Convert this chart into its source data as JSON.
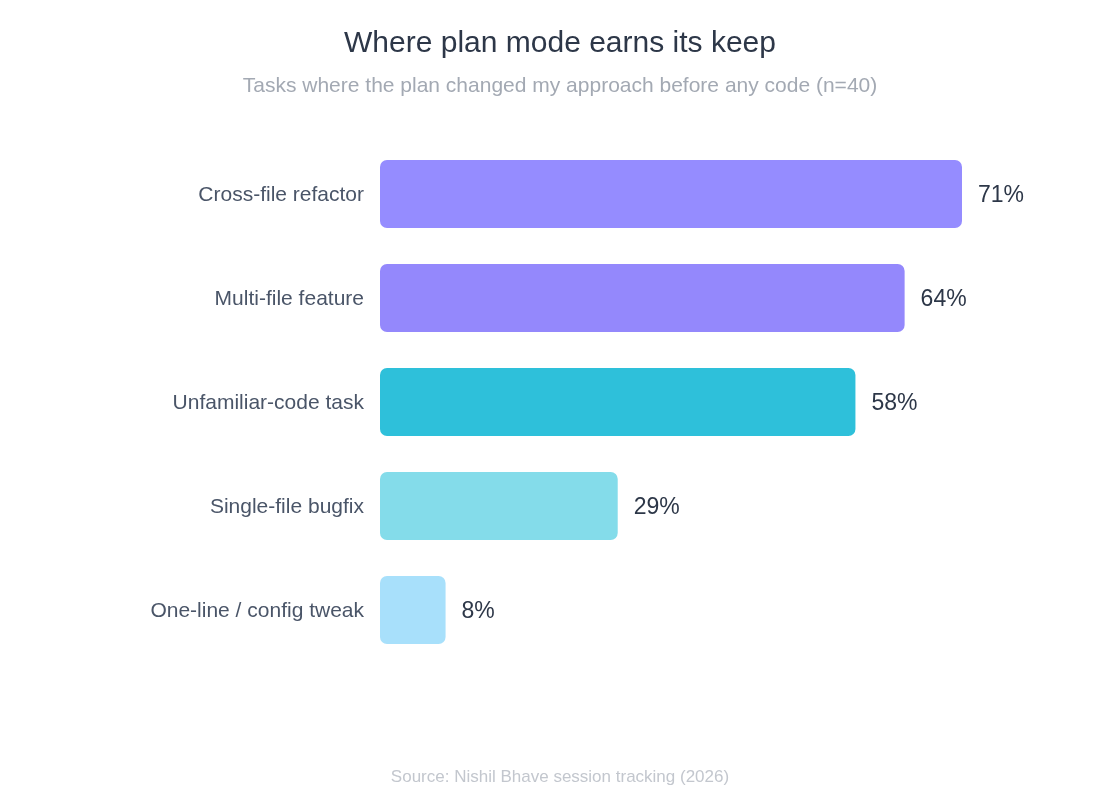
{
  "chart_data": {
    "type": "bar",
    "orientation": "horizontal",
    "title": "Where plan mode earns its keep",
    "subtitle": "Tasks where the plan changed my approach before any code (n=40)",
    "categories": [
      "Cross-file refactor",
      "Multi-file feature",
      "Unfamiliar-code task",
      "Single-file bugfix",
      "One-line / config tweak"
    ],
    "values": [
      71,
      64,
      58,
      29,
      8
    ],
    "colors": [
      "#958cff",
      "#9488fc",
      "#2ec0da",
      "#84dcea",
      "#a8e0fb"
    ],
    "value_labels": [
      "71%",
      "64%",
      "58%",
      "29%",
      "8%"
    ],
    "annotations": [
      "Source: Nishil Bhave session tracking (2026)"
    ]
  }
}
